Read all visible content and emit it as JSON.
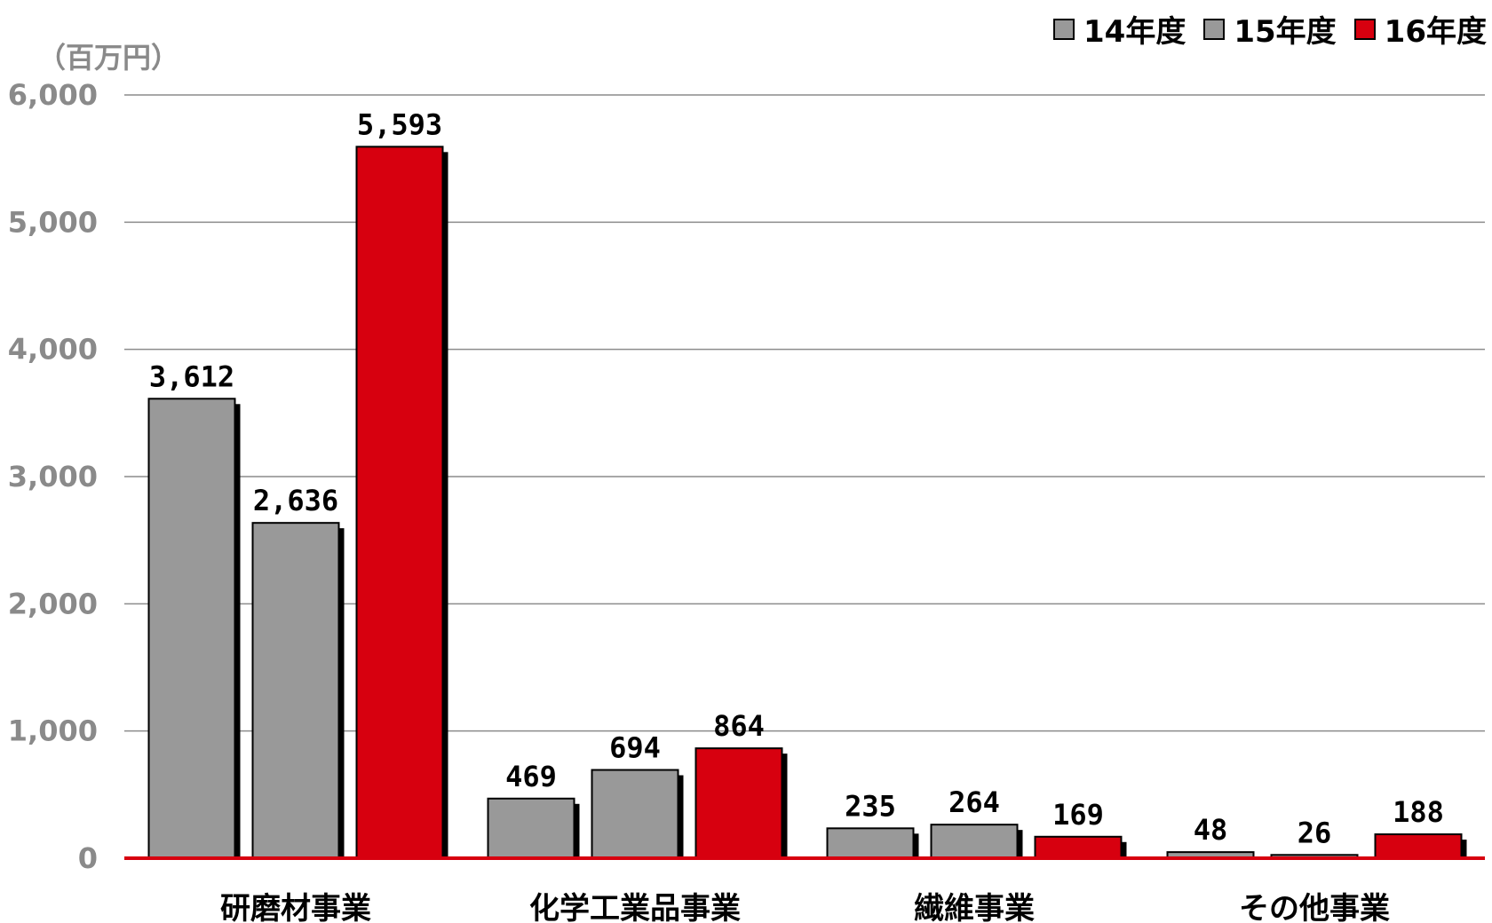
{
  "chart_data": {
    "type": "bar",
    "unit_label": "（百万円）",
    "categories": [
      "研磨材事業",
      "化学工業品事業",
      "繊維事業",
      "その他事業"
    ],
    "series": [
      {
        "name": "14年度",
        "color": "#999999",
        "values": [
          3612,
          469,
          235,
          48
        ]
      },
      {
        "name": "15年度",
        "color": "#999999",
        "values": [
          2636,
          694,
          264,
          26
        ]
      },
      {
        "name": "16年度",
        "color": "#d7000f",
        "values": [
          5593,
          864,
          169,
          188
        ]
      }
    ],
    "value_labels": [
      [
        "3,612",
        "469",
        "235",
        "48"
      ],
      [
        "2,636",
        "694",
        "264",
        "26"
      ],
      [
        "5,593",
        "864",
        "169",
        "188"
      ]
    ],
    "yticks": [
      0,
      1000,
      2000,
      3000,
      4000,
      5000,
      6000
    ],
    "ytick_labels": [
      "0",
      "1,000",
      "2,000",
      "3,000",
      "4,000",
      "5,000",
      "6,000"
    ],
    "ylim": [
      0,
      6000
    ],
    "grid": true,
    "legend_position": "top-right",
    "baseline_color": "#d7000f"
  }
}
